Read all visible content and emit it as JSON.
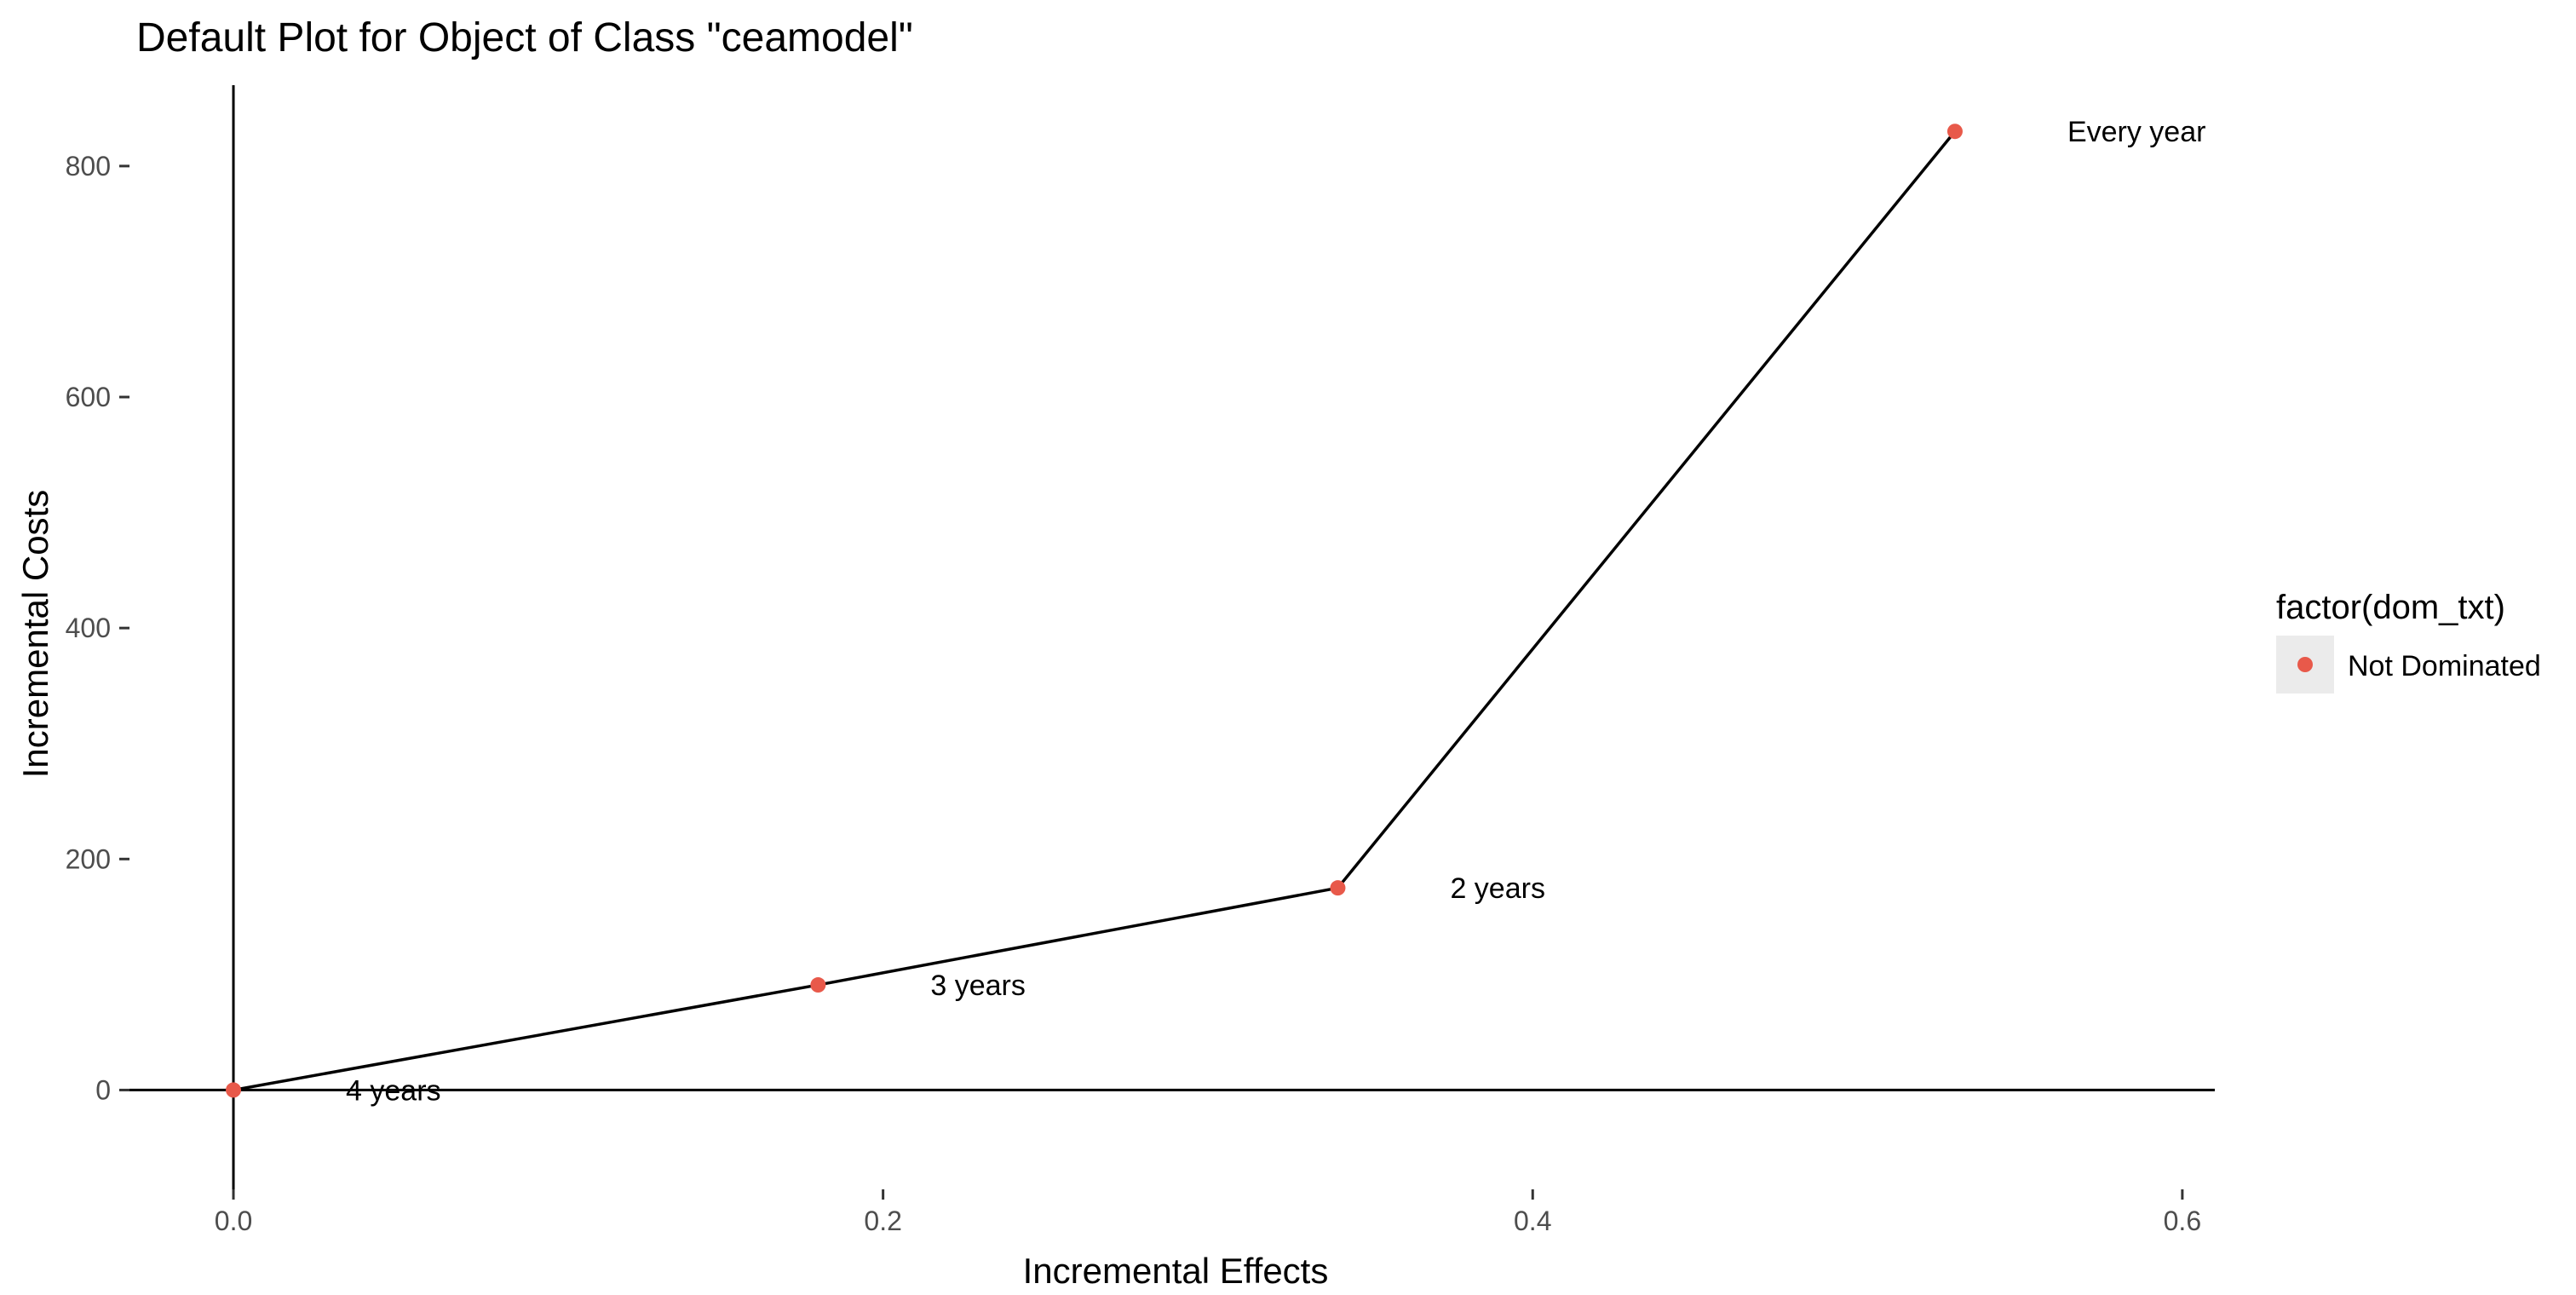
{
  "chart_data": {
    "type": "scatter",
    "title": "Default Plot for Object of Class \"ceamodel\"",
    "xlabel": "Incremental Effects",
    "ylabel": "Incremental Costs",
    "xlim": [
      -0.032,
      0.61
    ],
    "ylim": [
      -86,
      870
    ],
    "x_ticks": [
      0.0,
      0.2,
      0.4,
      0.6
    ],
    "x_tick_labels": [
      "0.0",
      "0.2",
      "0.4",
      "0.6"
    ],
    "y_ticks": [
      0,
      200,
      400,
      600,
      800
    ],
    "y_tick_labels": [
      "0",
      "200",
      "400",
      "600",
      "800"
    ],
    "grid": false,
    "legend": {
      "title": "factor(dom_txt)",
      "placement": "right",
      "entries": [
        "Not Dominated"
      ]
    },
    "series": [
      {
        "name": "Not Dominated",
        "color": "#E8594A",
        "points": [
          {
            "x": 0.0,
            "y": 0,
            "label": "4 years"
          },
          {
            "x": 0.18,
            "y": 91,
            "label": "3 years"
          },
          {
            "x": 0.34,
            "y": 175,
            "label": "2 years"
          },
          {
            "x": 0.53,
            "y": 830,
            "label": "Every year"
          }
        ]
      }
    ],
    "frontier_line_color": "#000000",
    "reference_lines": {
      "x": 0,
      "y": 0
    }
  }
}
